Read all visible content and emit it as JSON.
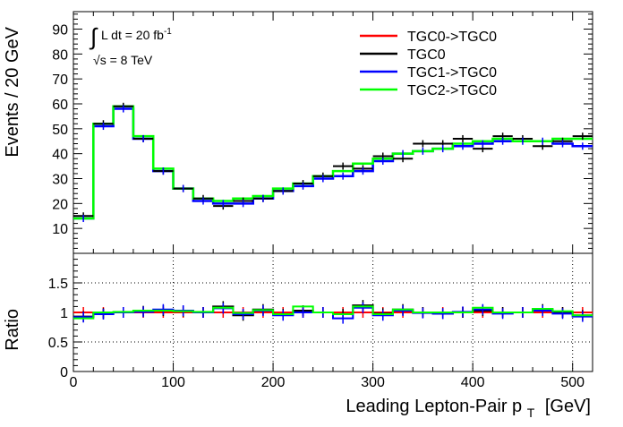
{
  "chart_data": [
    {
      "type": "line",
      "panel": "top",
      "ylabel": "Events / 20 GeV",
      "ylim": [
        0,
        97
      ],
      "yticks": [
        10,
        20,
        30,
        40,
        50,
        60,
        70,
        80,
        90
      ],
      "xlim": [
        0,
        520
      ],
      "bin_width": 20,
      "annotation": {
        "lumi_integral": "∫",
        "lumi_text": "L dt = 20 fb",
        "lumi_sup": "-1",
        "energy_sqrt": "√",
        "energy_text": "s = 8 TeV"
      },
      "legend": {
        "placement": "top-right"
      },
      "series": [
        {
          "name": "TGC0->TGC0",
          "color": "#ff0000",
          "style": "step",
          "values": []
        },
        {
          "name": "TGC0",
          "color": "#000000",
          "style": "points",
          "values": [
            15,
            52,
            59,
            46,
            33,
            26,
            22,
            19,
            21,
            22,
            25,
            28,
            31,
            35,
            34,
            39,
            38,
            44,
            44,
            46,
            42,
            47,
            46,
            43,
            45,
            47
          ]
        },
        {
          "name": "TGC1->TGC0",
          "color": "#0000ff",
          "style": "step",
          "values": [
            14,
            51,
            58,
            46,
            33,
            26,
            21,
            20,
            20,
            22,
            25,
            27,
            30,
            31,
            33,
            37,
            40,
            41,
            42,
            43,
            44,
            45,
            45,
            45,
            44,
            43
          ]
        },
        {
          "name": "TGC2->TGC0",
          "color": "#00ff00",
          "style": "step",
          "values": [
            14,
            52,
            59,
            47,
            34,
            26,
            22,
            21,
            22,
            23,
            26,
            28,
            31,
            33,
            36,
            38,
            40,
            41,
            42,
            44,
            45,
            46,
            45,
            45,
            46,
            46
          ]
        }
      ]
    },
    {
      "type": "line",
      "panel": "bottom",
      "ylabel": "Ratio",
      "xlabel": "Leading Lepton-Pair p",
      "xlabel_sub": "T",
      "xlabel_unit": "[GeV]",
      "ylim": [
        0,
        2
      ],
      "yticks": [
        0,
        0.5,
        1,
        1.5
      ],
      "ytick_labels": [
        "0",
        "0.5",
        "1",
        "1.5"
      ],
      "xlim": [
        0,
        520
      ],
      "xticks": [
        0,
        100,
        200,
        300,
        400,
        500
      ],
      "xtick_labels": [
        "0",
        "100",
        "200",
        "300",
        "400",
        "500"
      ],
      "grid": true,
      "series": [
        {
          "name": "TGC0->TGC0",
          "color": "#ff0000",
          "style": "step",
          "values": [
            1,
            1,
            1,
            1,
            1,
            1,
            1,
            1,
            1,
            1,
            1,
            1,
            1,
            1,
            1,
            1,
            1,
            1,
            1,
            1,
            1,
            1,
            1,
            1,
            1,
            1
          ]
        },
        {
          "name": "TGC0",
          "color": "#000000",
          "style": "step",
          "values": [
            0.93,
            0.98,
            1.0,
            1.02,
            1.03,
            1.02,
            1.0,
            1.1,
            0.95,
            1.05,
            0.97,
            1.03,
            1.0,
            0.97,
            1.12,
            0.98,
            1.05,
            1.0,
            0.98,
            1.0,
            1.03,
            1.0,
            1.0,
            1.05,
            1.0,
            0.95
          ]
        },
        {
          "name": "TGC1->TGC0",
          "color": "#0000ff",
          "style": "step",
          "values": [
            0.92,
            0.97,
            1.0,
            1.01,
            1.05,
            1.03,
            1.0,
            1.07,
            0.97,
            1.03,
            0.95,
            1.0,
            1.0,
            0.9,
            1.08,
            0.95,
            1.03,
            0.99,
            0.98,
            1.01,
            1.05,
            0.98,
            1.0,
            1.03,
            0.98,
            0.93
          ]
        },
        {
          "name": "TGC2->TGC0",
          "color": "#00ff00",
          "style": "step",
          "values": [
            0.9,
            1.0,
            1.01,
            1.03,
            1.03,
            1.02,
            1.01,
            1.08,
            0.99,
            1.04,
            0.97,
            1.1,
            1.0,
            0.97,
            1.1,
            0.97,
            1.05,
            1.0,
            1.0,
            1.0,
            1.08,
            1.0,
            1.0,
            1.06,
            1.02,
            0.95
          ]
        }
      ]
    }
  ]
}
